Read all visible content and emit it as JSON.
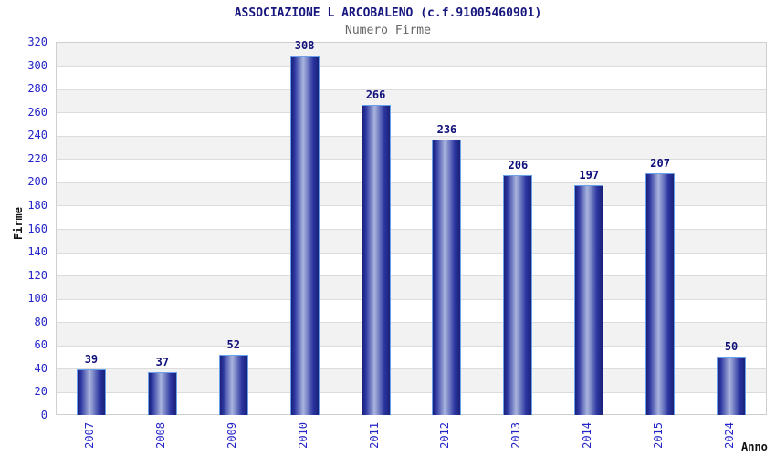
{
  "chart_data": {
    "type": "bar",
    "title": "ASSOCIAZIONE L ARCOBALENO (c.f.91005460901)",
    "subtitle": "Numero Firme",
    "xlabel": "Anno",
    "ylabel": "Firme",
    "categories": [
      "2007",
      "2008",
      "2009",
      "2010",
      "2011",
      "2012",
      "2013",
      "2014",
      "2015",
      "2024"
    ],
    "values": [
      39,
      37,
      52,
      308,
      266,
      236,
      206,
      197,
      207,
      50
    ],
    "ylim": [
      0,
      320
    ],
    "ytick_step": 20,
    "legend": "none",
    "grid": "horizontal-stripes-alternating",
    "bar_style": "cylinder-gradient",
    "colors": {
      "title": "#16167e",
      "subtitle": "#666666",
      "tick_labels": "#2424c8",
      "value_labels": "#10107a",
      "axis_titles": "#111111",
      "bar_dark": "#1a2178",
      "bar_mid_dark": "#2b35a0",
      "bar_mid_light": "#7d89c8",
      "bar_light": "#aab4de",
      "bar_border": "#6aa0ea",
      "stripe_gray": "#f2f2f2",
      "stripe_white": "#ffffff",
      "grid_line": "#dcdcdc",
      "plot_border": "#cfcfcf",
      "background": "#ffffff"
    }
  }
}
